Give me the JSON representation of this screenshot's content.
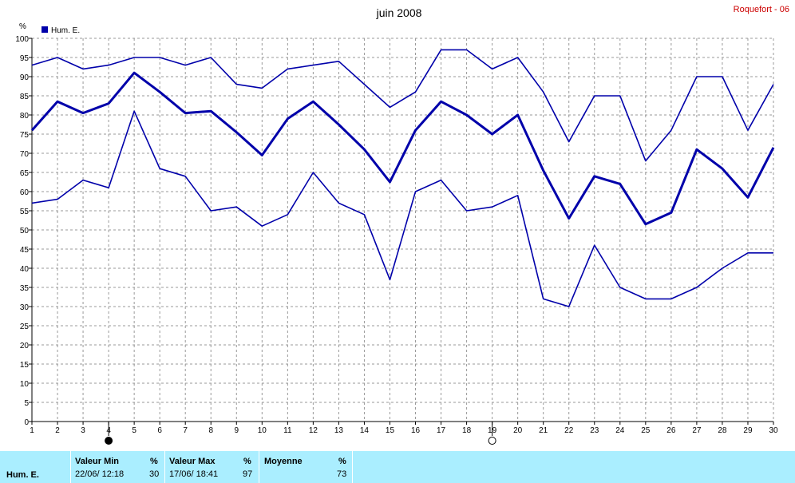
{
  "chart_data": {
    "type": "line",
    "title": "juin 2008",
    "station": "Roquefort - 06",
    "ylabel": "%",
    "ylim": [
      0,
      100
    ],
    "yticks": [
      0,
      5,
      10,
      15,
      20,
      25,
      30,
      35,
      40,
      45,
      50,
      55,
      60,
      65,
      70,
      75,
      80,
      85,
      90,
      95,
      100
    ],
    "x": [
      1,
      2,
      3,
      4,
      5,
      6,
      7,
      8,
      9,
      10,
      11,
      12,
      13,
      14,
      15,
      16,
      17,
      18,
      19,
      20,
      21,
      22,
      23,
      24,
      25,
      26,
      27,
      28,
      29,
      30
    ],
    "legend": [
      "Hum. E."
    ],
    "series": [
      {
        "name": "Hum. E.",
        "role": "max",
        "values": [
          93,
          95,
          92,
          93,
          95,
          95,
          93,
          95,
          88,
          87,
          92,
          93,
          94,
          88,
          82,
          86,
          97,
          97,
          92,
          95,
          86,
          73,
          85,
          85,
          68,
          76,
          90,
          90,
          76,
          88
        ]
      },
      {
        "name": "Hum. E.",
        "role": "mean",
        "values": [
          76,
          83.5,
          80.5,
          83,
          91,
          86,
          80.5,
          81,
          75.5,
          69.5,
          79,
          83.5,
          77.5,
          71,
          62.5,
          76,
          83.5,
          80,
          75,
          80,
          65.5,
          53,
          64,
          62,
          51.5,
          54.5,
          71,
          66,
          58.5,
          71.5
        ]
      },
      {
        "name": "Hum. E.",
        "role": "min",
        "values": [
          57,
          58,
          63,
          61,
          81,
          66,
          64,
          55,
          56,
          51,
          54,
          65,
          57,
          54,
          37,
          60,
          63,
          55,
          56,
          59,
          32,
          30,
          46,
          35,
          32,
          32,
          35,
          40,
          44,
          44
        ]
      }
    ],
    "moon_phases": [
      {
        "day": 4,
        "phase": "full"
      },
      {
        "day": 19,
        "phase": "new"
      }
    ],
    "grid": true,
    "line_color": "#0000aa"
  },
  "stats": {
    "row_label": "Hum. E.",
    "min": {
      "label": "Valeur Min",
      "unit": "%",
      "date": "22/06/  12:18",
      "value": "30"
    },
    "max": {
      "label": "Valeur Max",
      "unit": "%",
      "date": "17/06/  18:41",
      "value": "97"
    },
    "avg": {
      "label": "Moyenne",
      "unit": "%",
      "value": "73"
    }
  }
}
